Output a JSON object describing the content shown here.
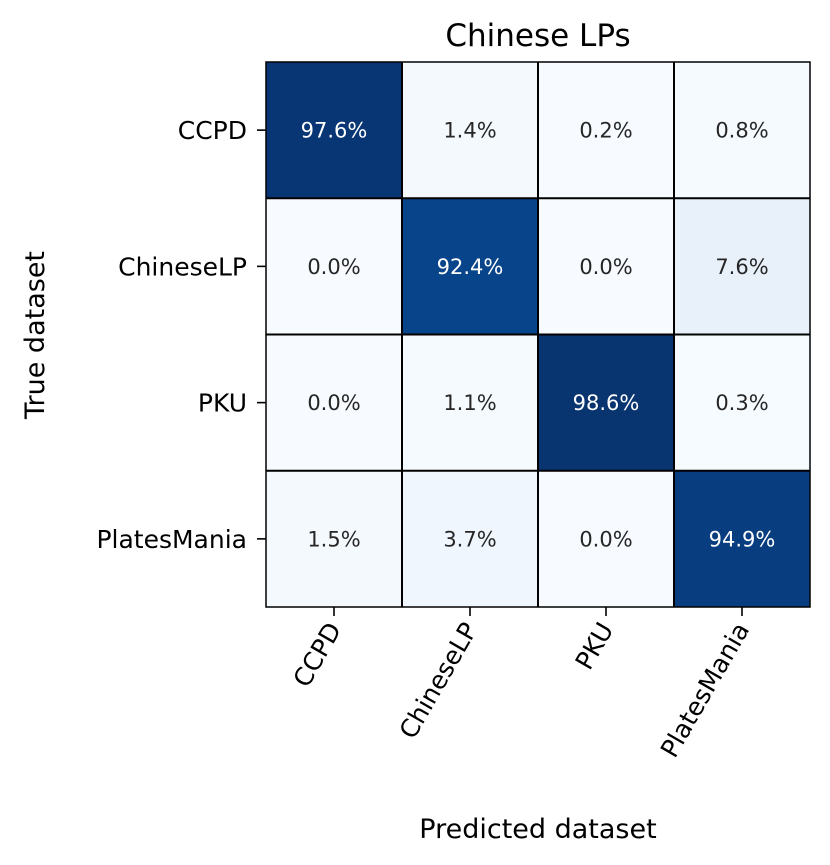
{
  "chart_data": {
    "type": "heatmap",
    "title": "Chinese LPs",
    "xlabel": "Predicted dataset",
    "ylabel": "True dataset",
    "x_categories": [
      "CCPD",
      "ChineseLP",
      "PKU",
      "PlatesMania"
    ],
    "y_categories": [
      "CCPD",
      "ChineseLP",
      "PKU",
      "PlatesMania"
    ],
    "values": [
      [
        97.6,
        1.4,
        0.2,
        0.8
      ],
      [
        0.0,
        92.4,
        0.0,
        7.6
      ],
      [
        0.0,
        1.1,
        98.6,
        0.3
      ],
      [
        1.5,
        3.7,
        0.0,
        94.9
      ]
    ],
    "value_labels": [
      [
        "97.6%",
        "1.4%",
        "0.2%",
        "0.8%"
      ],
      [
        "0.0%",
        "92.4%",
        "0.0%",
        "7.6%"
      ],
      [
        "0.0%",
        "1.1%",
        "98.6%",
        "0.3%"
      ],
      [
        "1.5%",
        "3.7%",
        "0.0%",
        "94.9%"
      ]
    ],
    "value_range": [
      0,
      100
    ],
    "colormap": "Blues",
    "colors": {
      "low": "#f7fbff",
      "mid": "#c6dbef",
      "high": "#08306b",
      "text_dark": "#262626",
      "text_light": "#ffffff",
      "grid": "#000000"
    },
    "colorbar": false,
    "legend": "none"
  }
}
